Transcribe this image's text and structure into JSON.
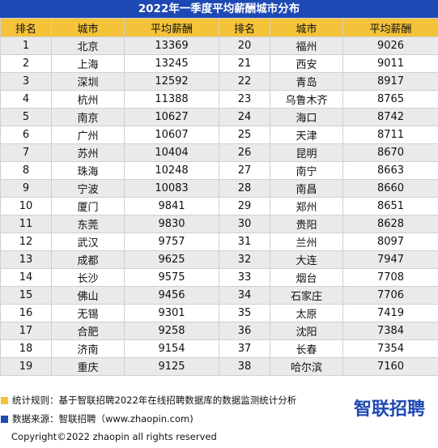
{
  "title": "2022年一季度平均薪酬城市分布",
  "headers": [
    "排名",
    "城市",
    "平均薪酬",
    "排名",
    "城市",
    "平均薪酬"
  ],
  "colors": {
    "title_bg": "#1e49b4",
    "header_bg": "#f4c33a",
    "row_stripe": "#eaeaea",
    "note_yellow": "#f4c33a",
    "note_blue": "#1e49b4",
    "logo_blue": "#1e49b4"
  },
  "rows": [
    {
      "rank1": "1",
      "city1": "北京",
      "salary1": "13369",
      "rank2": "20",
      "city2": "福州",
      "salary2": "9026"
    },
    {
      "rank1": "2",
      "city1": "上海",
      "salary1": "13245",
      "rank2": "21",
      "city2": "西安",
      "salary2": "9011"
    },
    {
      "rank1": "3",
      "city1": "深圳",
      "salary1": "12592",
      "rank2": "22",
      "city2": "青岛",
      "salary2": "8917"
    },
    {
      "rank1": "4",
      "city1": "杭州",
      "salary1": "11388",
      "rank2": "23",
      "city2": "乌鲁木齐",
      "salary2": "8765"
    },
    {
      "rank1": "5",
      "city1": "南京",
      "salary1": "10627",
      "rank2": "24",
      "city2": "海口",
      "salary2": "8742"
    },
    {
      "rank1": "6",
      "city1": "广州",
      "salary1": "10607",
      "rank2": "25",
      "city2": "天津",
      "salary2": "8711"
    },
    {
      "rank1": "7",
      "city1": "苏州",
      "salary1": "10404",
      "rank2": "26",
      "city2": "昆明",
      "salary2": "8670"
    },
    {
      "rank1": "8",
      "city1": "珠海",
      "salary1": "10248",
      "rank2": "27",
      "city2": "南宁",
      "salary2": "8663"
    },
    {
      "rank1": "9",
      "city1": "宁波",
      "salary1": "10083",
      "rank2": "28",
      "city2": "南昌",
      "salary2": "8660"
    },
    {
      "rank1": "10",
      "city1": "厦门",
      "salary1": "9841",
      "rank2": "29",
      "city2": "郑州",
      "salary2": "8651"
    },
    {
      "rank1": "11",
      "city1": "东莞",
      "salary1": "9830",
      "rank2": "30",
      "city2": "贵阳",
      "salary2": "8628"
    },
    {
      "rank1": "12",
      "city1": "武汉",
      "salary1": "9757",
      "rank2": "31",
      "city2": "兰州",
      "salary2": "8097"
    },
    {
      "rank1": "13",
      "city1": "成都",
      "salary1": "9625",
      "rank2": "32",
      "city2": "大连",
      "salary2": "7947"
    },
    {
      "rank1": "14",
      "city1": "长沙",
      "salary1": "9575",
      "rank2": "33",
      "city2": "烟台",
      "salary2": "7708"
    },
    {
      "rank1": "15",
      "city1": "佛山",
      "salary1": "9456",
      "rank2": "34",
      "city2": "石家庄",
      "salary2": "7706"
    },
    {
      "rank1": "16",
      "city1": "无锡",
      "salary1": "9301",
      "rank2": "35",
      "city2": "太原",
      "salary2": "7419"
    },
    {
      "rank1": "17",
      "city1": "合肥",
      "salary1": "9258",
      "rank2": "36",
      "city2": "沈阳",
      "salary2": "7384"
    },
    {
      "rank1": "18",
      "city1": "济南",
      "salary1": "9154",
      "rank2": "37",
      "city2": "长春",
      "salary2": "7354"
    },
    {
      "rank1": "19",
      "city1": "重庆",
      "salary1": "9125",
      "rank2": "38",
      "city2": "哈尔滨",
      "salary2": "7160"
    }
  ],
  "notes": {
    "rule": "统计规则：基于智联招聘2022年在线招聘数据库的数据监测统计分析",
    "source": "数据来源：智联招聘（www.zhaopin.com)"
  },
  "logo": {
    "text": "智联招聘",
    "icon": "zhaopin-logo"
  },
  "copyright": "Copyright©2022 zhaopin all rights reserved"
}
